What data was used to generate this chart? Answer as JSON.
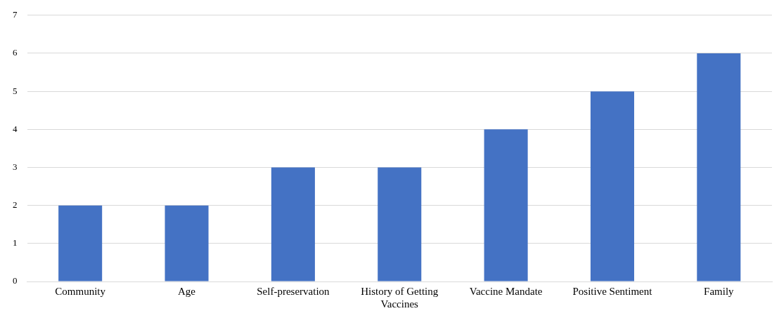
{
  "chart_data": {
    "type": "bar",
    "categories": [
      "Community",
      "Age",
      "Self-preservation",
      "History of Getting Vaccines",
      "Vaccine Mandate",
      "Positive Sentiment",
      "Family"
    ],
    "values": [
      2,
      2,
      3,
      3,
      4,
      5,
      6
    ],
    "color": "#4472c4",
    "ylim": [
      0,
      7
    ],
    "yticks": [
      0,
      1,
      2,
      3,
      4,
      5,
      6,
      7
    ],
    "grid": "y"
  }
}
